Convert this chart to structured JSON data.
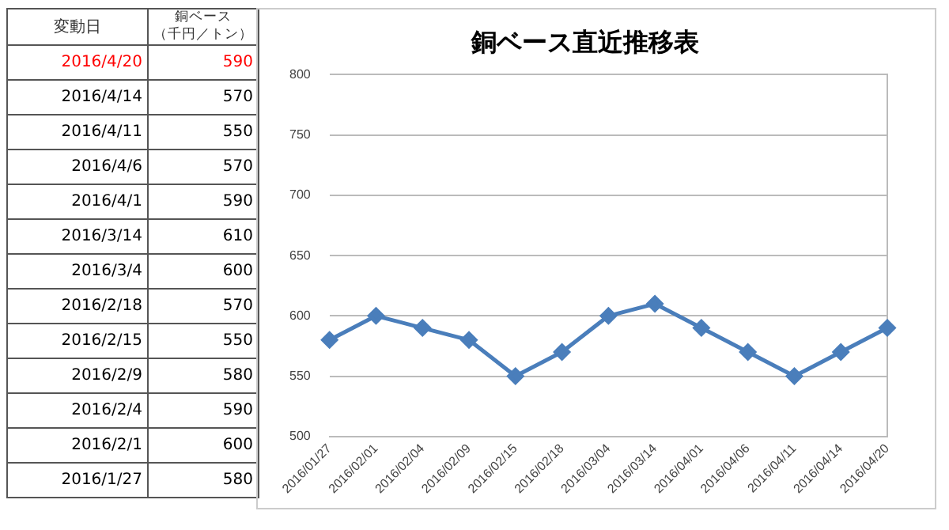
{
  "chart_data": [
    {
      "type": "other",
      "annotations": [
        "変動日",
        "銅ベース",
        "（千円／トン）"
      ],
      "categories": [
        "2016/4/20",
        "2016/4/14",
        "2016/4/11",
        "2016/4/6",
        "2016/4/1",
        "2016/3/14",
        "2016/3/4",
        "2016/2/18",
        "2016/2/15",
        "2016/2/9",
        "2016/2/4",
        "2016/2/1",
        "2016/1/27"
      ],
      "values": [
        590,
        570,
        550,
        570,
        590,
        610,
        600,
        570,
        550,
        580,
        590,
        600,
        580
      ],
      "colors": [
        "#ff0000",
        "#000000",
        "#000000",
        "#000000",
        "#000000",
        "#000000",
        "#000000",
        "#000000",
        "#000000",
        "#000000",
        "#000000",
        "#000000",
        "#000000"
      ],
      "data_labels": true
    },
    {
      "type": "line",
      "title": "銅ベース直近推移表",
      "categories": [
        "2016/01/27",
        "2016/02/01",
        "2016/02/04",
        "2016/02/09",
        "2016/02/15",
        "2016/02/18",
        "2016/03/04",
        "2016/03/14",
        "2016/04/01",
        "2016/04/06",
        "2016/04/11",
        "2016/04/14",
        "2016/04/20"
      ],
      "series": [
        {
          "color": "#4a7ebb",
          "values": [
            580,
            600,
            590,
            580,
            550,
            570,
            600,
            610,
            590,
            570,
            550,
            570,
            590
          ]
        }
      ],
      "ylim": [
        500,
        800
      ],
      "yticks": [
        500,
        550,
        600,
        650,
        700,
        750,
        800
      ],
      "grid": "y",
      "legend": false,
      "marker": "diamond",
      "line_style": "solid"
    }
  ]
}
